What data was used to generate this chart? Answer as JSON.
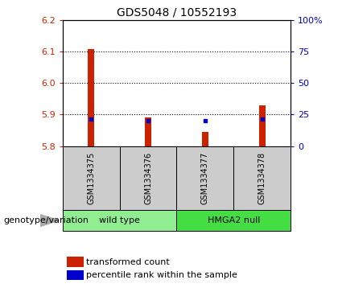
{
  "title": "GDS5048 / 10552193",
  "samples": [
    "GSM1334375",
    "GSM1334376",
    "GSM1334377",
    "GSM1334378"
  ],
  "group_spans": [
    {
      "label": "wild type",
      "start": 0,
      "end": 1,
      "color": "#90EE90"
    },
    {
      "label": "HMGA2 null",
      "start": 2,
      "end": 3,
      "color": "#44DD44"
    }
  ],
  "red_values": [
    6.11,
    5.89,
    5.845,
    5.93
  ],
  "blue_values": [
    5.885,
    5.882,
    5.88,
    5.886
  ],
  "ymin": 5.8,
  "ymax": 6.2,
  "yticks_left": [
    5.8,
    5.9,
    6.0,
    6.1,
    6.2
  ],
  "yticks_right_perc": [
    0,
    25,
    50,
    75,
    100
  ],
  "bar_color": "#cc2200",
  "dot_color": "#0000cc",
  "sample_bg": "#cccccc",
  "legend_transformed": "transformed count",
  "legend_percentile": "percentile rank within the sample",
  "genotype_label": "genotype/variation",
  "title_fontsize": 10,
  "tick_fontsize": 8,
  "sample_fontsize": 7,
  "group_fontsize": 8,
  "legend_fontsize": 8
}
